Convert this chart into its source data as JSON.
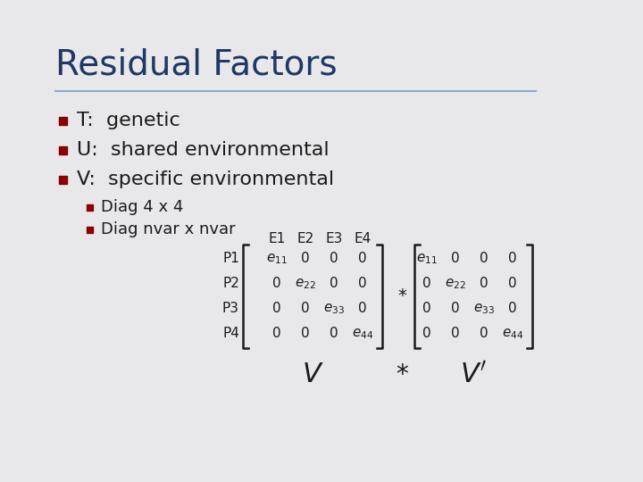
{
  "title": "Residual Factors",
  "title_color": "#1F3864",
  "bg_color": "#E8E8EA",
  "bullet_color": "#8B0000",
  "text_color": "#1a1a1a",
  "bullet1": "T:  genetic",
  "bullet2": "U:  shared environmental",
  "bullet3": "V:  specific environmental",
  "sub_bullet1": "Diag 4 x 4",
  "sub_bullet2": "Diag nvar x nvar",
  "line_color": "#8FA8C8",
  "col_headers": [
    "E1",
    "E2",
    "E3",
    "E4"
  ],
  "row_labels": [
    "P1",
    "P2",
    "P3",
    "P4"
  ]
}
